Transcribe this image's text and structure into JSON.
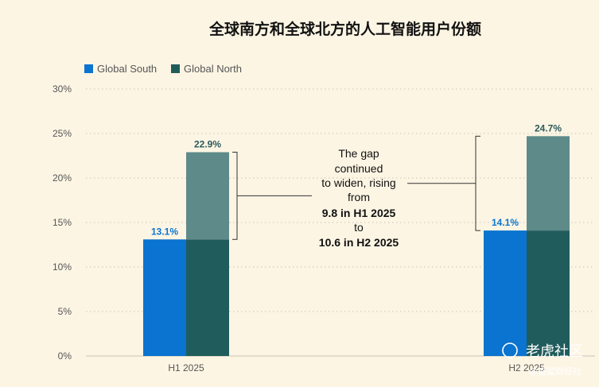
{
  "colors": {
    "background": "#fdf5e4",
    "south": "#0a74d0",
    "north_base": "#215c5c",
    "north_gap": "#5e8a8a",
    "north_label": "#2c5b5b",
    "gridline": "#c8c2b2"
  },
  "chart_data": {
    "type": "bar",
    "title": "全球南方和全球北方的人工智能用户份额",
    "categories": [
      "H1 2025",
      "H2 2025"
    ],
    "series": [
      {
        "name": "Global South",
        "values": [
          13.1,
          14.1
        ],
        "labels": [
          "13.1%",
          "14.1%"
        ]
      },
      {
        "name": "Global North",
        "values": [
          22.9,
          24.7
        ],
        "labels": [
          "22.9%",
          "24.7%"
        ]
      }
    ],
    "y_ticks": [
      "0%",
      "5%",
      "10%",
      "15%",
      "20%",
      "25%",
      "30%"
    ],
    "ylim": [
      0,
      30
    ],
    "grid": true,
    "legend_position": "top-left",
    "annotation": {
      "lines": [
        "The gap",
        "continued",
        "to widen, rising",
        "from"
      ],
      "bold_lines": [
        "9.8 in H1 2025",
        "to",
        "10.6 in H2 2025"
      ]
    }
  },
  "watermark": {
    "main": "老虎社区",
    "sub": "@盛鲨财经社"
  }
}
